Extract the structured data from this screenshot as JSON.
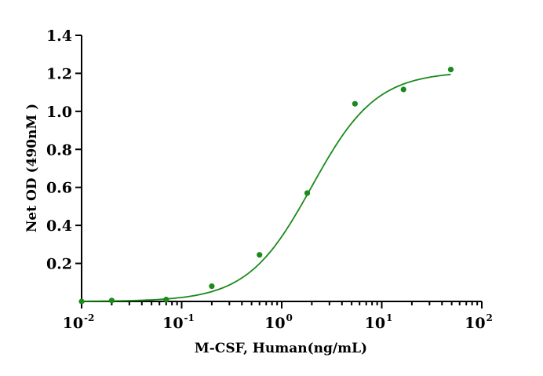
{
  "chart_data": {
    "type": "scatter",
    "xlabel": "M-CSF, Human(ng/mL)",
    "ylabel": "Net OD (490nM )",
    "x_scale": "log",
    "xlim": [
      0.01,
      100
    ],
    "ylim": [
      0,
      1.4
    ],
    "x_ticks": [
      {
        "base": "10",
        "exp": "-2"
      },
      {
        "base": "10",
        "exp": "-1"
      },
      {
        "base": "10",
        "exp": "0"
      },
      {
        "base": "10",
        "exp": "1"
      },
      {
        "base": "10",
        "exp": "2"
      }
    ],
    "y_ticks": [
      "0.2",
      "0.4",
      "0.6",
      "0.8",
      "1.0",
      "1.2",
      "1.4"
    ],
    "color": "#1a8a1a",
    "series": [
      {
        "x": [
          0.01,
          0.02,
          0.07,
          0.2,
          0.6,
          1.8,
          5.4,
          16.5,
          49
        ],
        "y": [
          0.0,
          0.005,
          0.01,
          0.08,
          0.245,
          0.57,
          1.04,
          1.115,
          1.22
        ]
      }
    ],
    "fit_curve": {
      "model": "4PL",
      "bottom": 0.0,
      "top": 1.21,
      "ec50": 2.0,
      "hill": 1.35
    },
    "grid": false,
    "legend": "none"
  }
}
